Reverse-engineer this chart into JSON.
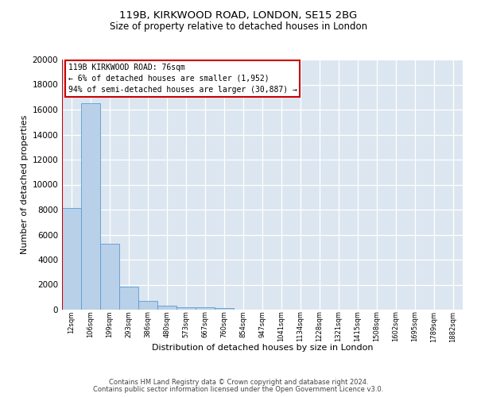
{
  "title1": "119B, KIRKWOOD ROAD, LONDON, SE15 2BG",
  "title2": "Size of property relative to detached houses in London",
  "xlabel": "Distribution of detached houses by size in London",
  "ylabel": "Number of detached properties",
  "bar_color": "#b8d0e8",
  "bar_edge_color": "#5b9bd5",
  "vline_color": "#cc0000",
  "annotation_text": "119B KIRKWOOD ROAD: 76sqm\n← 6% of detached houses are smaller (1,952)\n94% of semi-detached houses are larger (30,887) →",
  "footer1": "Contains HM Land Registry data © Crown copyright and database right 2024.",
  "footer2": "Contains public sector information licensed under the Open Government Licence v3.0.",
  "categories": [
    "12sqm",
    "106sqm",
    "199sqm",
    "293sqm",
    "386sqm",
    "480sqm",
    "573sqm",
    "667sqm",
    "760sqm",
    "854sqm",
    "947sqm",
    "1041sqm",
    "1134sqm",
    "1228sqm",
    "1321sqm",
    "1415sqm",
    "1508sqm",
    "1602sqm",
    "1695sqm",
    "1789sqm",
    "1882sqm"
  ],
  "values": [
    8100,
    16500,
    5300,
    1850,
    700,
    320,
    220,
    170,
    140,
    0,
    0,
    0,
    0,
    0,
    0,
    0,
    0,
    0,
    0,
    0,
    0
  ],
  "ylim": [
    0,
    20000
  ],
  "yticks": [
    0,
    2000,
    4000,
    6000,
    8000,
    10000,
    12000,
    14000,
    16000,
    18000,
    20000
  ],
  "bg_color": "#dce6f0",
  "fig_width": 6.0,
  "fig_height": 5.0,
  "dpi": 100
}
